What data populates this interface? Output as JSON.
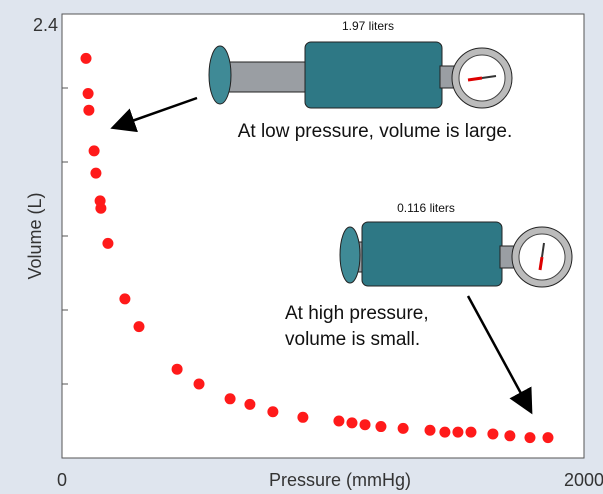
{
  "chart_data": {
    "type": "scatter",
    "title": null,
    "ylabel": "Volume (L)",
    "xlabel": "Pressure (mmHg)",
    "color": "#ff1a1a",
    "xlim": [
      0,
      2000
    ],
    "xticks": [
      0,
      2000
    ],
    "ylim": [
      0,
      2.4
    ],
    "yticks": [
      2.4
    ],
    "yminor_ticks": [
      0.4,
      0.8,
      1.2,
      1.6,
      2.0
    ],
    "x": [
      92,
      100,
      103,
      123,
      130,
      146,
      149,
      176,
      241,
      295,
      441,
      525,
      644,
      720,
      808,
      923,
      1061,
      1111,
      1161,
      1222,
      1307,
      1410,
      1467,
      1517,
      1567,
      1651,
      1716,
      1793,
      1862
    ],
    "values": [
      2.16,
      1.97,
      1.88,
      1.66,
      1.54,
      1.39,
      1.35,
      1.16,
      0.86,
      0.71,
      0.48,
      0.4,
      0.32,
      0.29,
      0.25,
      0.22,
      0.2,
      0.19,
      0.18,
      0.17,
      0.16,
      0.15,
      0.14,
      0.14,
      0.14,
      0.13,
      0.12,
      0.11,
      0.11
    ],
    "annotations": {
      "low_volume": "1.97  liters",
      "low_caption": "At low pressure, volume is large.",
      "high_volume": "0.116  liters",
      "high_caption": [
        "At high pressure,",
        "volume is small."
      ]
    }
  }
}
